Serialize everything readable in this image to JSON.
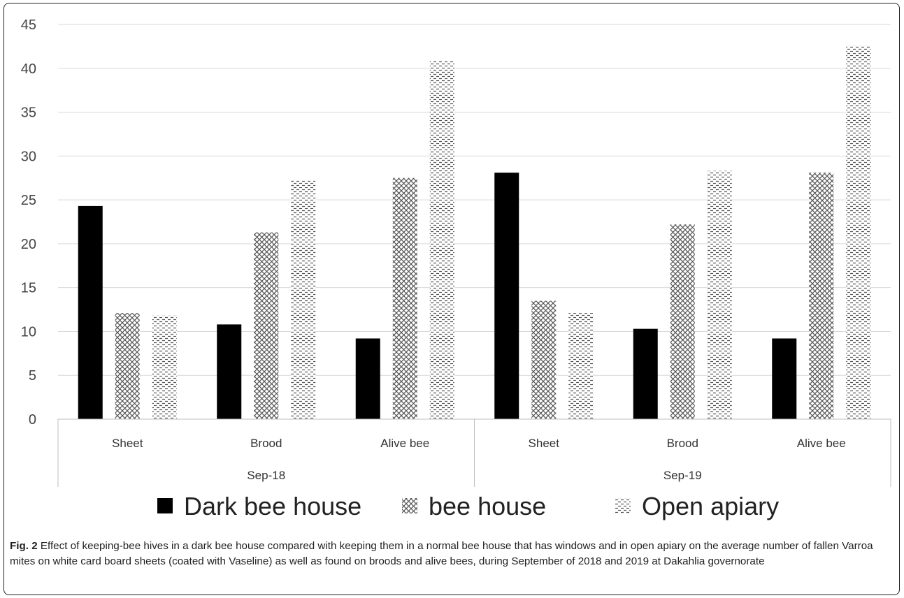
{
  "chart_data": {
    "type": "bar",
    "group_labels": [
      "Sep-18",
      "Sep-19"
    ],
    "categories": [
      "Sheet",
      "Brood",
      "Alive bee",
      "Sheet",
      "Brood",
      "Alive bee"
    ],
    "series": [
      {
        "name": "Dark bee house",
        "values": [
          24.3,
          10.8,
          9.2,
          28.1,
          10.3,
          9.2
        ],
        "color": "#000000",
        "pattern": "solid"
      },
      {
        "name": "bee house",
        "values": [
          12.1,
          21.3,
          27.5,
          13.5,
          22.2,
          28.1
        ],
        "color": "#555555",
        "pattern": "crosshatch"
      },
      {
        "name": "Open apiary",
        "values": [
          11.8,
          27.3,
          40.9,
          12.1,
          28.3,
          42.6
        ],
        "color": "#555555",
        "pattern": "dashes"
      }
    ],
    "ylim": [
      0,
      45
    ],
    "yticks": [
      "0",
      "5",
      "10",
      "15",
      "20",
      "25",
      "30",
      "35",
      "40",
      "45"
    ],
    "grid": true,
    "legend_position": "bottom"
  },
  "caption": {
    "label": "Fig. 2",
    "text": " Effect of keeping-bee hives in a dark bee house compared with keeping them in a normal bee house that has windows and in open apiary on the average number of fallen Varroa mites on white card board sheets (coated with Vaseline) as well as found on broods and alive bees, during September of 2018 and 2019 at Dakahlia governorate"
  }
}
